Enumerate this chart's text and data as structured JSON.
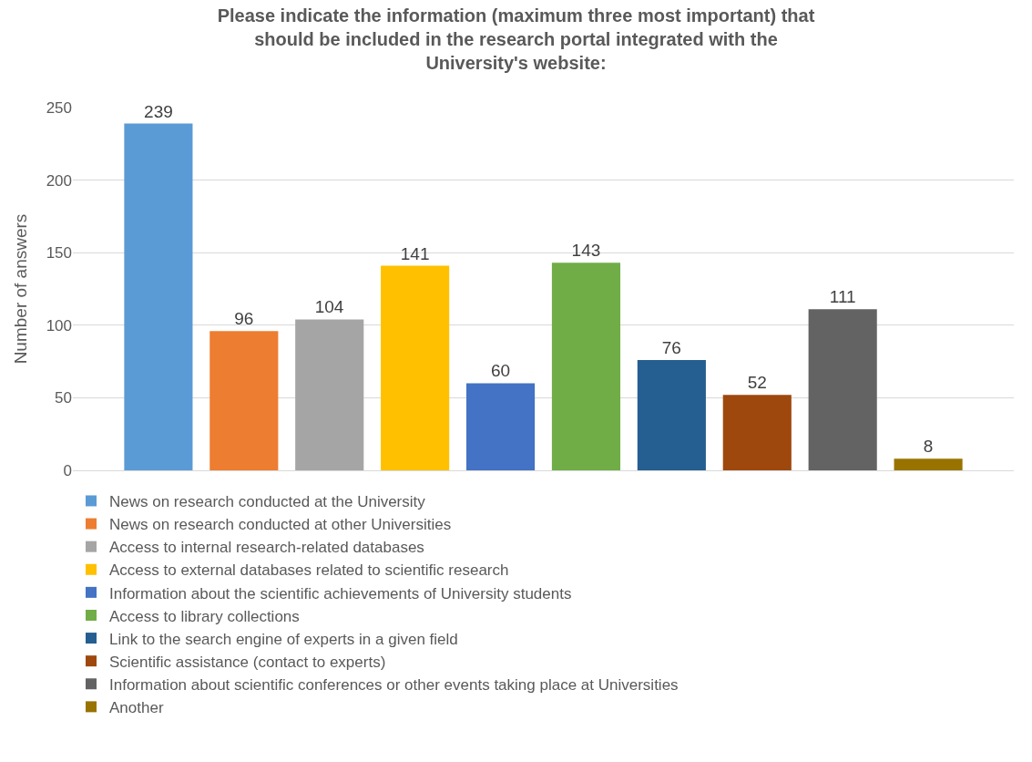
{
  "chart_data": {
    "type": "bar",
    "title": "Please indicate the information (maximum three most important) that should be included in the research portal integrated with the University's website:",
    "ylabel": "Number of answers",
    "categories": [
      null
    ],
    "ylim": [
      0,
      250
    ],
    "yticks": [
      0,
      50,
      100,
      150,
      200,
      250
    ],
    "grid": "y",
    "legend": "bottom",
    "data_labels": true,
    "series": [
      {
        "name": "News on research conducted at the University",
        "color": "#5b9bd5",
        "values": [
          239
        ]
      },
      {
        "name": "News on research conducted at other Universities",
        "color": "#ed7d31",
        "values": [
          96
        ]
      },
      {
        "name": "Access to internal research-related databases",
        "color": "#a5a5a5",
        "values": [
          104
        ]
      },
      {
        "name": "Access to external databases related to scientific research",
        "color": "#ffc000",
        "values": [
          141
        ]
      },
      {
        "name": "Information about the scientific achievements of University students",
        "color": "#4472c4",
        "values": [
          60
        ]
      },
      {
        "name": "Access to library collections",
        "color": "#70ad47",
        "values": [
          143
        ]
      },
      {
        "name": "Link to the search engine of experts in a given field",
        "color": "#255e91",
        "values": [
          76
        ]
      },
      {
        "name": "Scientific assistance (contact to experts)",
        "color": "#9e480e",
        "values": [
          52
        ]
      },
      {
        "name": "Information about scientific conferences or other events taking place at Universities",
        "color": "#636363",
        "values": [
          111
        ]
      },
      {
        "name": "Another",
        "color": "#997300",
        "values": [
          8
        ]
      }
    ]
  }
}
